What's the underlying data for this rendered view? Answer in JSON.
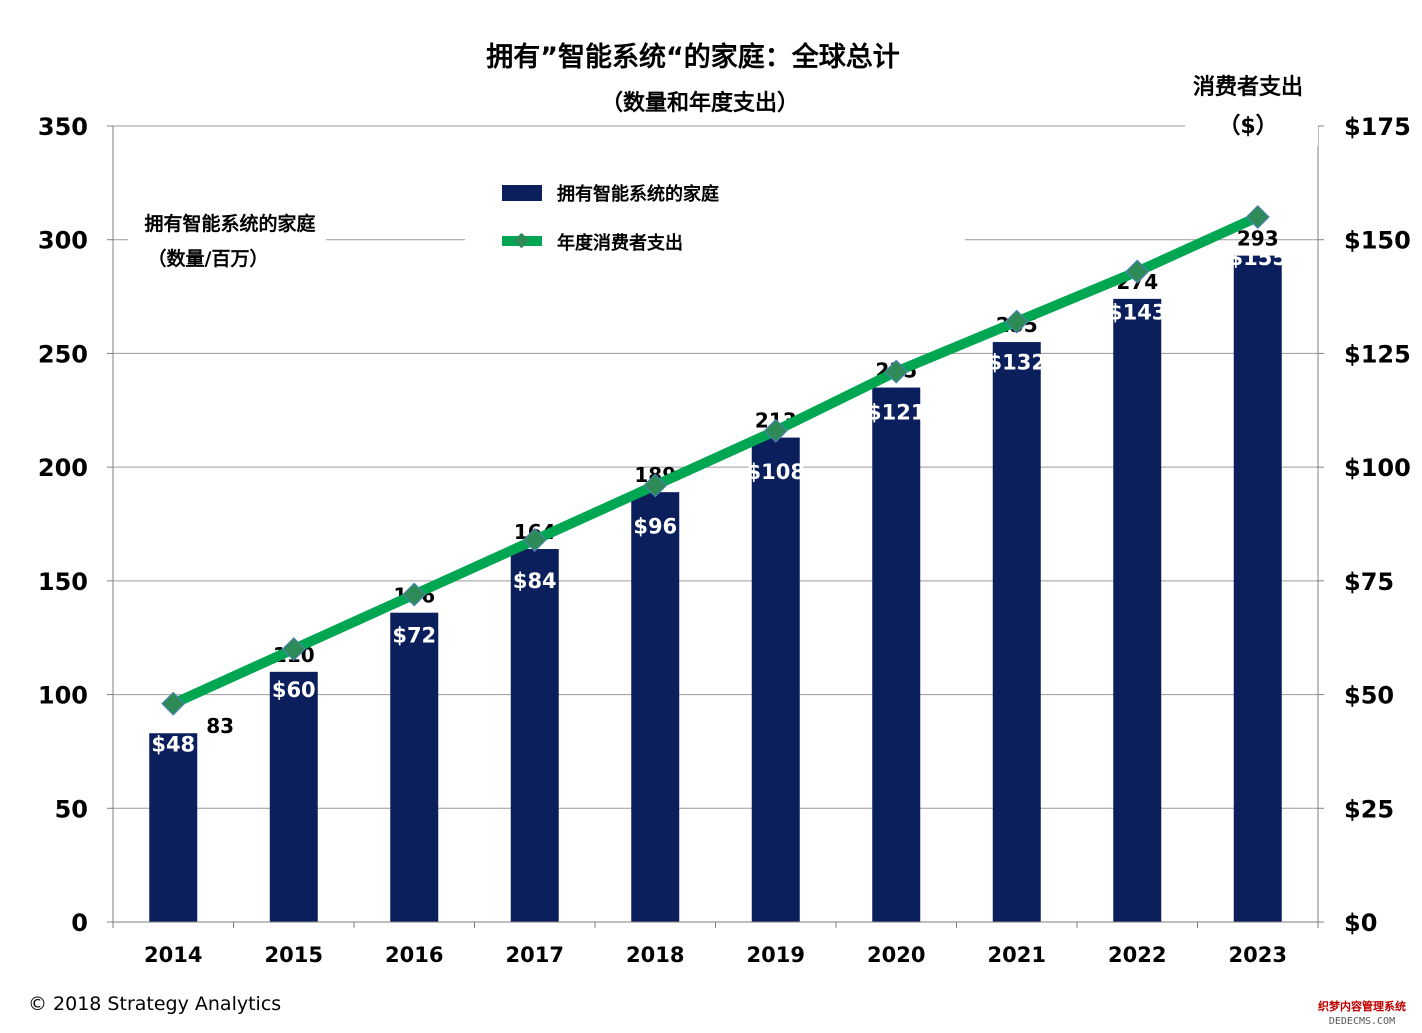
{
  "chart_data": {
    "type": "bar",
    "title": "拥有”智能系统“的家庭：全球总计",
    "subtitle": "（数量和年度支出）",
    "categories": [
      "2014",
      "2015",
      "2016",
      "2017",
      "2018",
      "2019",
      "2020",
      "2021",
      "2022",
      "2023"
    ],
    "series": [
      {
        "name": "拥有智能系统的家庭",
        "type": "bar",
        "axis": "left",
        "color": "#0b1f5c",
        "values": [
          83,
          110,
          136,
          164,
          189,
          213,
          235,
          255,
          274,
          293
        ],
        "labels": [
          "83",
          "110",
          "136",
          "164",
          "189",
          "213",
          "235",
          "255",
          "274",
          "293"
        ]
      },
      {
        "name": "年度消费者支出",
        "type": "line",
        "axis": "right",
        "color": "#00a651",
        "marker_color": "#2e8b57",
        "values": [
          48,
          60,
          72,
          84,
          96,
          108,
          121,
          132,
          143,
          155
        ],
        "labels": [
          "$48",
          "$60",
          "$72",
          "$84",
          "$96",
          "$108",
          "$121",
          "$132",
          "$143",
          "$155"
        ]
      }
    ],
    "left_axis": {
      "title_line1": "拥有智能系统的家庭",
      "title_line2": "（数量/百万）",
      "ylim": [
        0,
        350
      ],
      "ticks": [
        0,
        50,
        100,
        150,
        200,
        250,
        300,
        350
      ],
      "tick_labels": [
        "0",
        "50",
        "100",
        "150",
        "200",
        "250",
        "300",
        "350"
      ]
    },
    "right_axis": {
      "title_line1": "消费者支出",
      "title_line2": "（$）",
      "ylim": [
        0,
        175
      ],
      "ticks": [
        0,
        25,
        50,
        75,
        100,
        125,
        150,
        175
      ],
      "tick_labels": [
        "$0",
        "$25",
        "$50",
        "$75",
        "$100",
        "$125",
        "$150",
        "$175"
      ]
    },
    "grid": true,
    "legend_placement": "top-center"
  },
  "footer": {
    "copyright": "© 2018 Strategy Analytics"
  },
  "watermark": {
    "line1": "织梦内容管理系统",
    "line2": "DEDECMS.COM"
  }
}
